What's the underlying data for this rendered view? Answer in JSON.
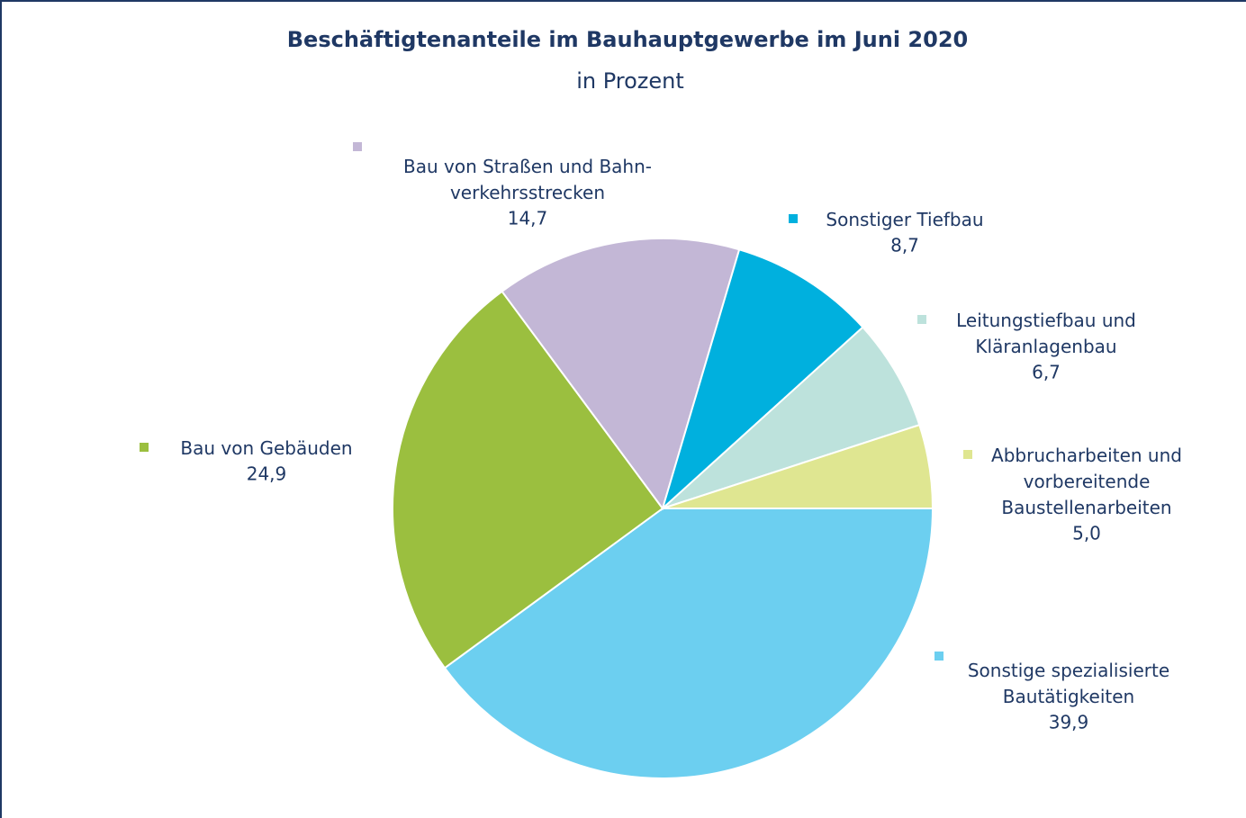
{
  "chart_data": {
    "type": "pie",
    "title": "Beschäftigtenanteile im Bauhauptgewerbe im Juni 2020",
    "subtitle": "in Prozent",
    "categories": [
      "Sonstige spezialisierte\nBautätigkeiten",
      "Bau von Gebäuden",
      "Bau von Straßen und Bahn-\nverkehrsstrecken",
      "Sonstiger Tiefbau",
      "Leitungstiefbau und\nKläranlagenbau",
      "Abbrucharbeiten und\nvorbereitende\nBaustellenarbeiten"
    ],
    "values": [
      39.9,
      24.9,
      14.7,
      8.7,
      6.7,
      5.0
    ],
    "value_labels": [
      "39,9",
      "24,9",
      "14,7",
      "8,7",
      "6,7",
      "5,0"
    ],
    "colors": [
      "#6ccff0",
      "#9bbf3f",
      "#c3b7d6",
      "#00b0de",
      "#bde2dc",
      "#dfe691"
    ]
  }
}
